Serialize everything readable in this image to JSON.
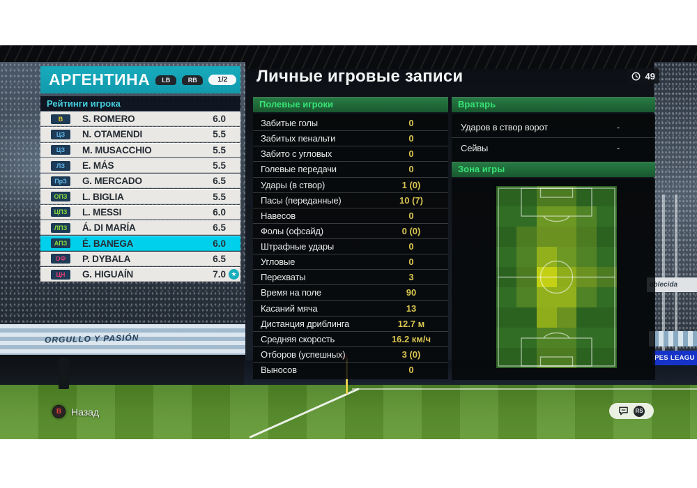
{
  "left_panel": {
    "team_name": "АРГЕНТИНА",
    "lb_button": "LB",
    "rb_button": "RB",
    "page_indicator": "1/2",
    "ratings_header": "Рейтинги игрока",
    "players": [
      {
        "pos": "В",
        "role": "gk",
        "name": "S. ROMERO",
        "rating": "6.0",
        "selected": false,
        "starred": false
      },
      {
        "pos": "ЦЗ",
        "role": "df",
        "name": "N. OTAMENDI",
        "rating": "5.5",
        "selected": false,
        "starred": false
      },
      {
        "pos": "ЦЗ",
        "role": "df",
        "name": "M. MUSACCHIO",
        "rating": "5.5",
        "selected": false,
        "starred": false
      },
      {
        "pos": "ЛЗ",
        "role": "df",
        "name": "E. MÁS",
        "rating": "5.5",
        "selected": false,
        "starred": false
      },
      {
        "pos": "ПрЗ",
        "role": "df",
        "name": "G. MERCADO",
        "rating": "6.5",
        "selected": false,
        "starred": false
      },
      {
        "pos": "ОПЗ",
        "role": "mf",
        "name": "L. BIGLIA",
        "rating": "5.5",
        "selected": false,
        "starred": false
      },
      {
        "pos": "ЦПЗ",
        "role": "mf",
        "name": "L. MESSI",
        "rating": "6.0",
        "selected": false,
        "starred": false
      },
      {
        "pos": "ЛПЗ",
        "role": "mf",
        "name": "Á. DI MARÍA",
        "rating": "6.5",
        "selected": false,
        "starred": false
      },
      {
        "pos": "АПЗ",
        "role": "mf",
        "name": "É. BANEGA",
        "rating": "6.0",
        "selected": true,
        "starred": false
      },
      {
        "pos": "ОФ",
        "role": "fw",
        "name": "P. DYBALA",
        "rating": "6.5",
        "selected": false,
        "starred": false
      },
      {
        "pos": "ЦН",
        "role": "fw",
        "name": "G. HIGUAÍN",
        "rating": "7.0",
        "selected": false,
        "starred": true
      }
    ]
  },
  "main": {
    "title": "Личные игровые записи",
    "clock_value": "49",
    "section_field_players": "Полевые игроки",
    "section_goalkeeper": "Вратарь",
    "section_zone": "Зона игры",
    "field_stats": [
      {
        "label": "Забитые голы",
        "value": "0"
      },
      {
        "label": "Забитых пенальти",
        "value": "0"
      },
      {
        "label": "Забито с угловых",
        "value": "0"
      },
      {
        "label": "Голевые передачи",
        "value": "0"
      },
      {
        "label": "Удары (в створ)",
        "value": "1 (0)"
      },
      {
        "label": "Пасы (переданные)",
        "value": "10 (7)"
      },
      {
        "label": "Навесов",
        "value": "0"
      },
      {
        "label": "Фолы (офсайд)",
        "value": "0 (0)"
      },
      {
        "label": "Штрафные удары",
        "value": "0"
      },
      {
        "label": "Угловые",
        "value": "0"
      },
      {
        "label": "Перехваты",
        "value": "3"
      },
      {
        "label": "Время на поле",
        "value": "90"
      },
      {
        "label": "Касаний мяча",
        "value": "13"
      },
      {
        "label": "Дистанция дриблинга",
        "value": "12.7 м"
      },
      {
        "label": "Средняя скорость",
        "value": "16.2 км/ч"
      },
      {
        "label": "Отборов (успешных)",
        "value": "3 (0)"
      },
      {
        "label": "Выносов",
        "value": "0"
      }
    ],
    "gk_stats": [
      {
        "label": "Ударов в створ ворот",
        "value": "-"
      },
      {
        "label": "Сейвы",
        "value": "-"
      }
    ],
    "zone_grid": [
      [
        0,
        0,
        1,
        1,
        0,
        0
      ],
      [
        0,
        0,
        2,
        2,
        1,
        0
      ],
      [
        0,
        1,
        2,
        2,
        1,
        0
      ],
      [
        0,
        1,
        3,
        2,
        1,
        0
      ],
      [
        0,
        1,
        4,
        3,
        2,
        1
      ],
      [
        0,
        1,
        3,
        3,
        1,
        0
      ],
      [
        0,
        0,
        3,
        2,
        0,
        0
      ],
      [
        0,
        0,
        1,
        1,
        0,
        0
      ],
      [
        0,
        0,
        1,
        1,
        0,
        0
      ]
    ]
  },
  "footer": {
    "back_button": "B",
    "back_label": "Назад",
    "rs_button": "RS"
  },
  "background": {
    "banner_text": "ORGULLO Y PASIÓN",
    "board_white_text": "ablecida",
    "board_blue_text": "PES LEAGU"
  },
  "colors": {
    "header_teal": "#13a2b4",
    "highlight_cyan": "#00d0ec",
    "ratings_header_cyan": "#45cede",
    "section_green": "#37e276",
    "value_yellow": "#d9c550",
    "pos_gk_yellow": "#e6cf25",
    "pos_df_blue": "#62b6e8",
    "pos_mf_green": "#84d93c",
    "pos_fw_magenta": "#e23d74"
  }
}
